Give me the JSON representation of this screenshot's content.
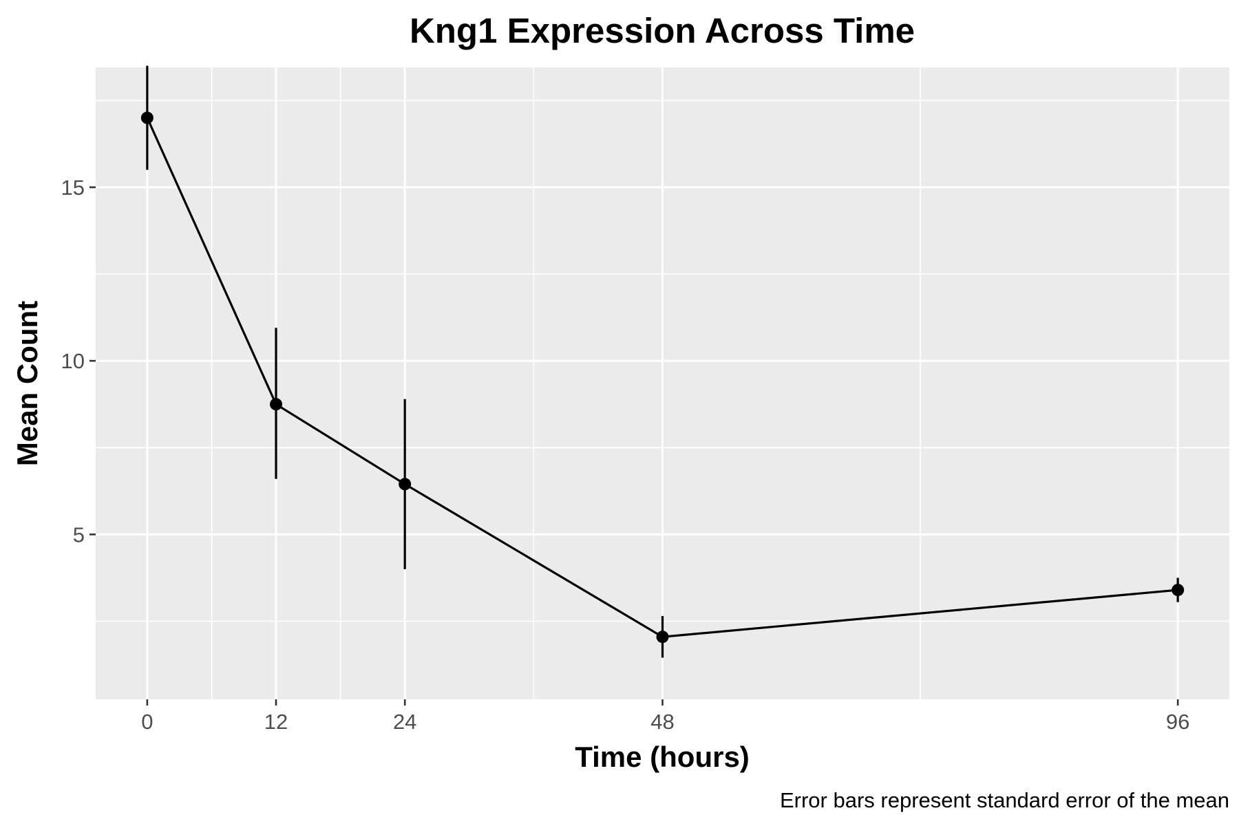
{
  "chart_data": {
    "type": "line",
    "title": "Kng1 Expression Across Time",
    "xlabel": "Time (hours)",
    "ylabel": "Mean Count",
    "caption": "Error bars represent standard error of the mean",
    "x_ticks": [
      "0",
      "12",
      "24",
      "48",
      "96"
    ],
    "y_ticks": [
      "5",
      "10",
      "15"
    ],
    "xlim": [
      -4.8,
      100.8
    ],
    "ylim": [
      0.25,
      18.45
    ],
    "grid": true,
    "legend": "none",
    "colors": {
      "panel": "#ebebeb",
      "grid": "#ffffff",
      "series": "#000000"
    },
    "series": [
      {
        "x": [
          0,
          12,
          24,
          48,
          96
        ],
        "y": [
          17.0,
          8.75,
          6.45,
          2.05,
          3.4
        ],
        "error_low": [
          15.5,
          6.6,
          4.0,
          1.45,
          3.05
        ],
        "error_high": [
          18.5,
          10.95,
          8.9,
          2.65,
          3.75
        ]
      }
    ]
  }
}
